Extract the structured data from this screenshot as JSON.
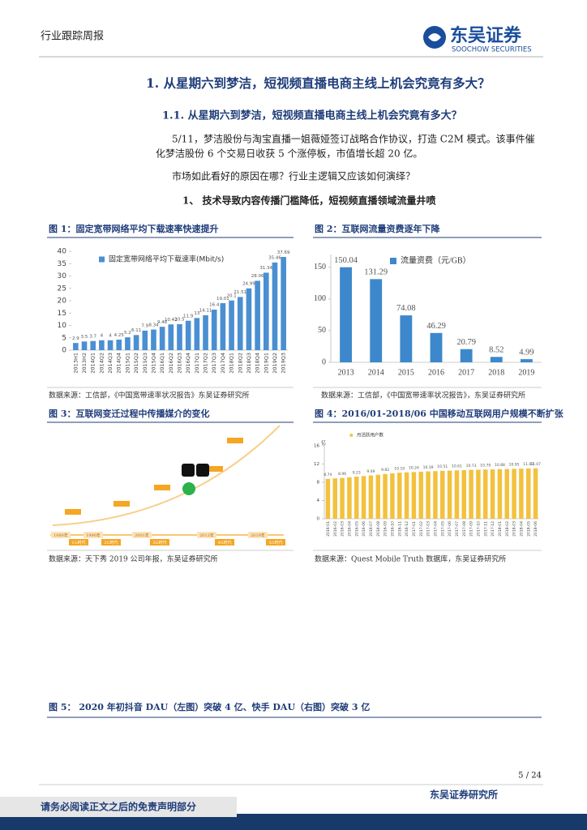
{
  "header": {
    "title": "行业跟踪周报",
    "logo_cn": "东吴证券",
    "logo_en": "SOOCHOW SECURITIES"
  },
  "section": {
    "heading": "1. 从星期六到梦洁，短视频直播电商主线上机会究竟有多大？",
    "subheading": "1.1. 从星期六到梦洁，短视频直播电商主线上机会究竟有多大？",
    "paragraph_lines": [
      "5/11，梦洁股份与淘宝直播一姐薇娅签订战略合作协议，打造 C2M 模式。该事件催",
      "化梦洁股份 6 个交易日收获 5 个涨停板，市值增长超 20 亿。",
      "市场如此看好的原因在哪？行业主逻辑又应该如何演绎？"
    ],
    "point": "1、 技术导致内容传播门槛降低，短视频直播领域流量井喷"
  },
  "figures": [
    {
      "caption": "图 1：固定宽带网络平均下载速率快速提升",
      "source": "数据来源：工信部，《中国宽带速率状况报告》东吴证券研究所"
    },
    {
      "caption": "图 2：互联网流量资费逐年下降",
      "source": "数据来源：工信部，《中国宽带速率状况报告》，东吴证券研究所"
    },
    {
      "caption": "图 3：互联网变迁过程中传播媒介的变化",
      "source": "数据来源：天下秀 2019 公司年报，东吴证券研究所"
    },
    {
      "caption": "图 4：2016/01-2018/06 中国移动互联网用户规模不断扩张",
      "source": "数据来源：Quest Mobile Truth 数据库，东吴证券研究所"
    },
    {
      "caption": "图 5： 2020 年初抖音 DAU（左图）突破 4 亿、快手 DAU（右图）突破 3 亿"
    }
  ],
  "chart_data": [
    {
      "type": "bar",
      "categories": [
        "2013H1",
        "2013H2",
        "2014Q1",
        "2014Q2",
        "2014Q3",
        "2014Q4",
        "2015Q1",
        "2015Q2",
        "2015Q3",
        "2015Q4",
        "2016Q1",
        "2016Q2",
        "2016Q3",
        "2016Q4",
        "2017Q1",
        "2017Q2",
        "2017Q3",
        "2017Q4",
        "2018Q1",
        "2018Q2",
        "2018Q3",
        "2018Q4",
        "2019Q1",
        "2019Q2",
        "2019Q3"
      ],
      "series": [
        {
          "name": "固定宽带网络平均下载速率(Mbit/s)",
          "color": "#4a8fd2",
          "values": [
            2.9,
            3.5,
            3.7,
            4.0,
            4.0,
            4.25,
            5.2,
            6.11,
            7.9,
            8.34,
            9.46,
            10.42,
            10.5,
            11.9,
            13.0,
            14.11,
            16.4,
            19.01,
            20.1,
            21.51,
            24.99,
            28.06,
            31.34,
            35.46,
            37.69
          ]
        }
      ],
      "ylim": [
        0,
        40
      ],
      "yticks": [
        0,
        5,
        10,
        15,
        20,
        25,
        30,
        35,
        40
      ],
      "legend": "upper left"
    },
    {
      "type": "bar",
      "categories": [
        "2013",
        "2014",
        "2015",
        "2016",
        "2017",
        "2018",
        "2019"
      ],
      "series": [
        {
          "name": "流量资费（元/GB）",
          "color": "#3d88cc",
          "values": [
            150.04,
            131.29,
            74.08,
            46.29,
            20.79,
            8.52,
            4.99
          ]
        }
      ],
      "ylim": [
        0,
        165
      ],
      "yticks": [
        0,
        50,
        100,
        150
      ],
      "legend": "upper right"
    },
    {
      "type": "bar",
      "y_label": "亿",
      "categories": [
        "2016-01",
        "2016-02",
        "2016-03",
        "2016-04",
        "2016-05",
        "2016-06",
        "2016-07",
        "2016-08",
        "2016-09",
        "2016-10",
        "2016-11",
        "2016-12",
        "2017-01",
        "2017-02",
        "2017-03",
        "2017-04",
        "2017-05",
        "2017-06",
        "2017-07",
        "2017-08",
        "2017-09",
        "2017-10",
        "2017-11",
        "2017-12",
        "2018-01",
        "2018-02",
        "2018-03",
        "2018-04",
        "2018-05",
        "2018-06"
      ],
      "series": [
        {
          "name": "月活跃用户数",
          "color": "#f3c13e",
          "values": [
            8.74,
            8.85,
            8.96,
            9.1,
            9.23,
            9.36,
            9.49,
            9.65,
            9.82,
            9.96,
            10.1,
            10.17,
            10.24,
            10.31,
            10.39,
            10.45,
            10.51,
            10.56,
            10.61,
            10.67,
            10.73,
            10.76,
            10.79,
            10.83,
            10.88,
            10.91,
            10.95,
            10.99,
            11.03,
            11.07
          ],
          "value_labels": [
            "8.74",
            null,
            "8.96",
            null,
            "9.23",
            null,
            "9.49",
            null,
            "9.82",
            null,
            "10.10",
            null,
            "10.24",
            null,
            "10.39",
            null,
            "10.51",
            null,
            "10.61",
            null,
            "10.73",
            null,
            "10.79",
            null,
            "10.88",
            null,
            "10.95",
            null,
            "11.03",
            "11.07"
          ]
        }
      ],
      "ylim": [
        0,
        16
      ],
      "yticks": [
        0,
        4,
        8,
        12,
        16
      ],
      "legend": "upper left"
    }
  ],
  "diagram": {
    "eras": [
      {
        "year": "1980年",
        "name": "1G时代"
      },
      {
        "year": "1990年",
        "name": "2G时代"
      },
      {
        "year": "2001年",
        "name": "3G时代"
      },
      {
        "year": "2013年",
        "name": "4G时代"
      },
      {
        "year": "2019年",
        "name": "5G时代"
      }
    ]
  },
  "page": {
    "number": "5 / 24",
    "institute": "东吴证券研究所",
    "disclaimer": "请务必阅读正文之后的免责声明部分"
  }
}
